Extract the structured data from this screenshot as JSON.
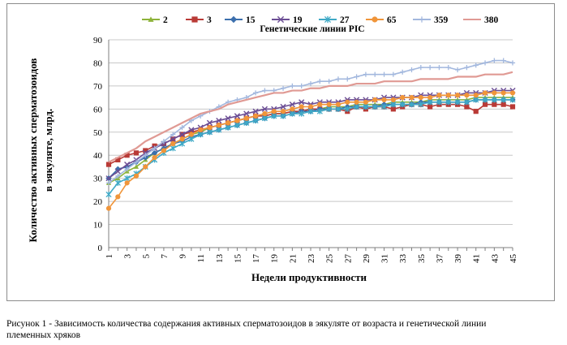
{
  "chart_data": {
    "type": "line",
    "title": "Генетические линии PIC",
    "xlabel": "Недели продуктивности",
    "ylabel_line1": "Количество активных сперматозоидов",
    "ylabel_line2": "в эякуляте, млрд.",
    "ylim": [
      0,
      90
    ],
    "yticks": [
      0,
      10,
      20,
      30,
      40,
      50,
      60,
      70,
      80,
      90
    ],
    "x": [
      1,
      2,
      3,
      4,
      5,
      6,
      7,
      8,
      9,
      10,
      11,
      12,
      13,
      14,
      15,
      16,
      17,
      18,
      19,
      20,
      21,
      22,
      23,
      24,
      25,
      26,
      27,
      28,
      29,
      30,
      31,
      32,
      33,
      34,
      35,
      36,
      37,
      38,
      39,
      40,
      41,
      42,
      43,
      44,
      45
    ],
    "xtick_labels": [
      "1",
      "3",
      "5",
      "7",
      "9",
      "11",
      "13",
      "15",
      "17",
      "19",
      "21",
      "23",
      "25",
      "27",
      "29",
      "31",
      "33",
      "35",
      "37",
      "39",
      "41",
      "43",
      "45"
    ],
    "grid": "horizontal",
    "legend_position": "top",
    "series": [
      {
        "name": "2",
        "color": "#8db33a",
        "marker": "triangle",
        "values": [
          28,
          30,
          33,
          35,
          38,
          41,
          43,
          45,
          47,
          49,
          50,
          52,
          53,
          54,
          55,
          56,
          57,
          57,
          58,
          58,
          59,
          59,
          60,
          60,
          61,
          61,
          61,
          62,
          62,
          62,
          62,
          63,
          63,
          63,
          63,
          64,
          64,
          64,
          64,
          64,
          65,
          65,
          65,
          65,
          65
        ]
      },
      {
        "name": "3",
        "color": "#b93a36",
        "marker": "square",
        "values": [
          36,
          38,
          40,
          41,
          42,
          44,
          45,
          47,
          49,
          50,
          51,
          52,
          53,
          54,
          55,
          56,
          57,
          57,
          58,
          58,
          59,
          59,
          60,
          60,
          60,
          60,
          59,
          61,
          60,
          61,
          61,
          60,
          61,
          62,
          62,
          61,
          62,
          62,
          62,
          61,
          59,
          62,
          62,
          62,
          61
        ]
      },
      {
        "name": "15",
        "color": "#3c6fad",
        "marker": "diamond",
        "values": [
          30,
          34,
          35,
          37,
          39,
          41,
          43,
          45,
          46,
          48,
          49,
          50,
          51,
          52,
          53,
          54,
          55,
          56,
          57,
          57,
          58,
          59,
          59,
          60,
          60,
          60,
          61,
          61,
          61,
          61,
          62,
          62,
          62,
          62,
          63,
          63,
          63,
          63,
          63,
          63,
          64,
          64,
          64,
          64,
          64
        ]
      },
      {
        "name": "19",
        "color": "#6b4d94",
        "marker": "x",
        "values": [
          30,
          33,
          36,
          38,
          41,
          43,
          45,
          47,
          49,
          51,
          52,
          54,
          55,
          56,
          57,
          58,
          59,
          60,
          60,
          61,
          62,
          63,
          62,
          63,
          63,
          63,
          64,
          64,
          64,
          64,
          65,
          65,
          65,
          65,
          66,
          66,
          66,
          66,
          66,
          67,
          67,
          67,
          68,
          68,
          68
        ]
      },
      {
        "name": "27",
        "color": "#3fa9c6",
        "marker": "star",
        "values": [
          23,
          28,
          30,
          32,
          35,
          38,
          41,
          43,
          45,
          47,
          49,
          50,
          51,
          52,
          53,
          54,
          55,
          56,
          57,
          57,
          58,
          58,
          59,
          59,
          60,
          60,
          60,
          61,
          61,
          61,
          61,
          62,
          62,
          62,
          62,
          63,
          63,
          63,
          63,
          63,
          64,
          64,
          64,
          64,
          64
        ]
      },
      {
        "name": "65",
        "color": "#f0953a",
        "marker": "circle",
        "values": [
          17,
          22,
          28,
          31,
          35,
          39,
          42,
          45,
          47,
          49,
          51,
          52,
          53,
          54,
          55,
          56,
          57,
          58,
          59,
          59,
          60,
          61,
          61,
          62,
          62,
          62,
          63,
          63,
          63,
          64,
          64,
          64,
          65,
          65,
          65,
          65,
          66,
          66,
          66,
          66,
          66,
          67,
          67,
          67,
          67
        ]
      },
      {
        "name": "359",
        "color": "#a3b8de",
        "marker": "plus",
        "values": [
          28,
          31,
          34,
          37,
          40,
          43,
          46,
          49,
          52,
          55,
          57,
          59,
          61,
          63,
          64,
          65,
          67,
          68,
          68,
          69,
          70,
          70,
          71,
          72,
          72,
          73,
          73,
          74,
          75,
          75,
          75,
          75,
          76,
          77,
          78,
          78,
          78,
          78,
          77,
          78,
          79,
          80,
          81,
          81,
          80
        ]
      },
      {
        "name": "380",
        "color": "#e09a94",
        "marker": "none",
        "values": [
          37,
          39,
          41,
          43,
          46,
          48,
          50,
          52,
          54,
          56,
          58,
          59,
          60,
          62,
          63,
          64,
          65,
          66,
          67,
          67,
          68,
          68,
          69,
          69,
          70,
          70,
          70,
          71,
          71,
          71,
          72,
          72,
          72,
          72,
          73,
          73,
          73,
          73,
          74,
          74,
          74,
          75,
          75,
          75,
          76
        ]
      }
    ]
  },
  "caption": {
    "line1": "Рисунок 1 - Зависимость количества содержания активных сперматозоидов в эякуляте от возраста и генетической линии",
    "line2": "племенных хряков"
  }
}
